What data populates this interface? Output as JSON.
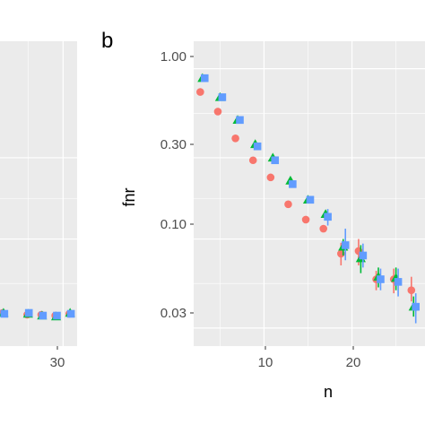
{
  "figure": {
    "panel_a": {
      "x_tick_labels": [
        "30"
      ]
    },
    "panel_b": {
      "tag": "b",
      "x_axis_title": "n",
      "y_axis_title": "fnr",
      "x_tick_labels": [
        "10",
        "20"
      ],
      "y_tick_labels": [
        "1.00",
        "0.30",
        "0.10",
        "0.03"
      ]
    }
  },
  "chart_data": [
    {
      "type": "scatter",
      "panel": "a",
      "partial": true,
      "x_ticks": [
        30
      ],
      "x_visible_range": [
        21,
        32
      ],
      "series": [
        {
          "color": "#F8766D",
          "points": [
            [
              21.5,
              0.085
            ],
            [
              25,
              0.075
            ],
            [
              27,
              0.075
            ],
            [
              29,
              0.07
            ],
            [
              31,
              0.08
            ]
          ]
        },
        {
          "color": "#00BA38",
          "points": [
            [
              21.5,
              0.085
            ],
            [
              25,
              0.08
            ],
            [
              27,
              0.07
            ],
            [
              29,
              0.065
            ],
            [
              31,
              0.085
            ]
          ]
        },
        {
          "color": "#619CFF",
          "points": [
            [
              21.5,
              0.08
            ],
            [
              25,
              0.085
            ],
            [
              27,
              0.07
            ],
            [
              29,
              0.07
            ],
            [
              31,
              0.08
            ]
          ]
        }
      ],
      "grid": true
    },
    {
      "type": "scatter",
      "panel": "b",
      "xlabel": "n",
      "ylabel": "fnr",
      "y_scale": "log",
      "x_ticks": [
        10,
        20
      ],
      "y_ticks": [
        1.0,
        0.3,
        0.1,
        0.03
      ],
      "xlim": [
        2,
        28.3
      ],
      "ylim": [
        0.0235,
        1.45
      ],
      "grid": true,
      "series": [
        {
          "color": "#F8766D",
          "points": [
            {
              "x": 3,
              "y": 0.73
            },
            {
              "x": 5,
              "y": 0.56
            },
            {
              "x": 7,
              "y": 0.39
            },
            {
              "x": 9,
              "y": 0.29
            },
            {
              "x": 11,
              "y": 0.23
            },
            {
              "x": 13,
              "y": 0.16
            },
            {
              "x": 15,
              "y": 0.13
            },
            {
              "x": 17,
              "y": 0.115
            },
            {
              "x": 19,
              "y": 0.082,
              "lo": 0.07,
              "hi": 0.095
            },
            {
              "x": 21,
              "y": 0.085,
              "lo": 0.07,
              "hi": 0.1
            },
            {
              "x": 23,
              "y": 0.058,
              "lo": 0.05,
              "hi": 0.065
            },
            {
              "x": 25,
              "y": 0.058,
              "lo": 0.048,
              "hi": 0.067
            },
            {
              "x": 27,
              "y": 0.05,
              "lo": 0.043,
              "hi": 0.06
            }
          ]
        },
        {
          "color": "#00BA38",
          "points": [
            {
              "x": 3,
              "y": 0.88
            },
            {
              "x": 5,
              "y": 0.68
            },
            {
              "x": 7,
              "y": 0.5
            },
            {
              "x": 9,
              "y": 0.36
            },
            {
              "x": 11,
              "y": 0.3
            },
            {
              "x": 13,
              "y": 0.22
            },
            {
              "x": 15,
              "y": 0.17
            },
            {
              "x": 17,
              "y": 0.14
            },
            {
              "x": 19,
              "y": 0.09,
              "lo": 0.08,
              "hi": 0.1
            },
            {
              "x": 21,
              "y": 0.077,
              "lo": 0.063,
              "hi": 0.092
            },
            {
              "x": 23,
              "y": 0.06,
              "lo": 0.052,
              "hi": 0.068
            },
            {
              "x": 25,
              "y": 0.059,
              "lo": 0.05,
              "hi": 0.068
            },
            {
              "x": 27,
              "y": 0.04,
              "lo": 0.035,
              "hi": 0.046
            }
          ]
        },
        {
          "color": "#619CFF",
          "points": [
            {
              "x": 3,
              "y": 0.88
            },
            {
              "x": 5,
              "y": 0.68
            },
            {
              "x": 7,
              "y": 0.5
            },
            {
              "x": 9,
              "y": 0.35
            },
            {
              "x": 11,
              "y": 0.29
            },
            {
              "x": 13,
              "y": 0.21
            },
            {
              "x": 15,
              "y": 0.17
            },
            {
              "x": 17,
              "y": 0.135,
              "lo": 0.12,
              "hi": 0.15
            },
            {
              "x": 19,
              "y": 0.092,
              "lo": 0.075,
              "hi": 0.115
            },
            {
              "x": 21,
              "y": 0.08,
              "lo": 0.068,
              "hi": 0.094
            },
            {
              "x": 23,
              "y": 0.058,
              "lo": 0.05,
              "hi": 0.067
            },
            {
              "x": 25,
              "y": 0.056,
              "lo": 0.046,
              "hi": 0.067
            },
            {
              "x": 27,
              "y": 0.04,
              "lo": 0.032,
              "hi": 0.048
            }
          ]
        }
      ]
    }
  ]
}
